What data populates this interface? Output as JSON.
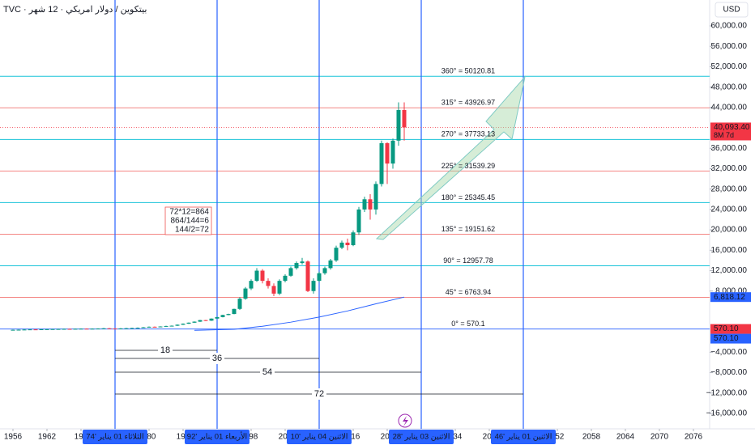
{
  "header": "TVC · بيتكوين / دولار امريكي · 12 شهر",
  "currency": "USD",
  "chart_data": {
    "type": "candlestick",
    "x": [
      1956,
      1957,
      1958,
      1959,
      1960,
      1961,
      1962,
      1963,
      1964,
      1965,
      1966,
      1967,
      1968,
      1969,
      1970,
      1971,
      1972,
      1973,
      1974,
      1975,
      1976,
      1977,
      1978,
      1979,
      1980,
      1981,
      1982,
      1983,
      1984,
      1985,
      1986,
      1987,
      1988,
      1989,
      1990,
      1991,
      1992,
      1993,
      1994,
      1995,
      1996,
      1997,
      1998,
      1999,
      2000,
      2001,
      2002,
      2003,
      2004,
      2005,
      2006,
      2007,
      2008,
      2009,
      2010,
      2011,
      2012,
      2013,
      2014,
      2015,
      2016,
      2017,
      2018,
      2019,
      2020,
      2021,
      2022,
      2023,
      2024,
      2025
    ],
    "open": [
      390,
      400,
      420,
      450,
      480,
      460,
      500,
      520,
      540,
      560,
      580,
      560,
      600,
      620,
      600,
      620,
      650,
      700,
      650,
      600,
      680,
      720,
      760,
      800,
      900,
      1000,
      950,
      1050,
      1150,
      1200,
      1400,
      1600,
      1800,
      2000,
      2300,
      2200,
      2600,
      2900,
      3300,
      3500,
      4500,
      6500,
      8500,
      10000,
      12000,
      10000,
      9000,
      7500,
      10000,
      11000,
      12500,
      13500,
      13800,
      8000,
      10000,
      11500,
      12500,
      14000,
      16500,
      17500,
      17000,
      19500,
      24000,
      26000,
      24000,
      29000,
      37000,
      33000,
      37500,
      43500
    ],
    "high": [
      450,
      470,
      500,
      530,
      530,
      550,
      570,
      590,
      610,
      630,
      630,
      650,
      670,
      670,
      670,
      700,
      750,
      750,
      700,
      730,
      770,
      810,
      850,
      950,
      1050,
      1050,
      1100,
      1200,
      1250,
      1450,
      1650,
      1850,
      2050,
      2350,
      2350,
      2650,
      2950,
      3350,
      3550,
      4550,
      6800,
      8800,
      10300,
      12500,
      12300,
      10500,
      9500,
      10300,
      11300,
      12800,
      13800,
      14500,
      14000,
      10500,
      11800,
      12800,
      14300,
      16900,
      17900,
      18300,
      19900,
      24500,
      26500,
      27000,
      29500,
      37500,
      37200,
      37900,
      45000,
      45000
    ],
    "low": [
      340,
      350,
      370,
      400,
      410,
      410,
      450,
      470,
      490,
      510,
      510,
      510,
      550,
      550,
      550,
      570,
      600,
      600,
      550,
      550,
      630,
      670,
      710,
      750,
      850,
      900,
      900,
      1000,
      1100,
      1150,
      1350,
      1550,
      1750,
      1950,
      2100,
      2150,
      2550,
      2850,
      3250,
      3450,
      4300,
      6300,
      8200,
      9800,
      9500,
      8500,
      7000,
      7200,
      9700,
      10800,
      12200,
      13200,
      7800,
      7500,
      9700,
      11200,
      12200,
      13700,
      16200,
      16000,
      16800,
      19000,
      23500,
      22000,
      23000,
      28500,
      29000,
      32000,
      36500,
      37500
    ],
    "close": [
      400,
      420,
      450,
      480,
      460,
      500,
      520,
      540,
      560,
      580,
      560,
      600,
      620,
      600,
      620,
      650,
      700,
      650,
      600,
      680,
      720,
      760,
      800,
      900,
      1000,
      950,
      1050,
      1150,
      1200,
      1400,
      1600,
      1800,
      2000,
      2300,
      2200,
      2600,
      2900,
      3300,
      3500,
      4500,
      6500,
      8500,
      10000,
      12000,
      10000,
      9000,
      7500,
      10000,
      11000,
      12500,
      13500,
      13800,
      8000,
      10000,
      11500,
      12500,
      14000,
      16500,
      17500,
      17000,
      19500,
      24000,
      26000,
      24000,
      29000,
      37000,
      33000,
      37500,
      43500,
      40093.4
    ],
    "up_color": "#089981",
    "down_color": "#f23645",
    "ma": {
      "x": [
        1988,
        1995,
        2000,
        2005,
        2010,
        2015,
        2020,
        2025
      ],
      "values": [
        300,
        500,
        1100,
        1900,
        2900,
        4100,
        5500,
        6818.12
      ],
      "color": "#2962ff"
    },
    "xlim": [
      1956,
      2076
    ],
    "ylim": [
      -16000,
      60000
    ],
    "xticks": [
      1956,
      1962,
      {
        "value": 1968,
        "label": "196"
      },
      {
        "value": 1980,
        "label": "980"
      },
      {
        "value": 1986,
        "label": "198"
      },
      {
        "value": 1998,
        "label": "998"
      },
      {
        "value": 2004,
        "label": "200"
      },
      {
        "value": 2016,
        "label": "016"
      },
      {
        "value": 2022,
        "label": "202"
      },
      {
        "value": 2034,
        "label": "034"
      },
      {
        "value": 2040,
        "label": "204"
      },
      {
        "value": 2052,
        "label": "052"
      },
      2058,
      2064,
      2070,
      2076
    ],
    "yticks": [
      {
        "value": 60000,
        "label": "60,000.00"
      },
      {
        "value": 56000,
        "label": "56,000.00"
      },
      {
        "value": 52000,
        "label": "52,000.00"
      },
      {
        "value": 48000,
        "label": "48,000.00"
      },
      {
        "value": 44000,
        "label": "44,000.00"
      },
      {
        "value": 36000,
        "label": "36,000.00"
      },
      {
        "value": 32000,
        "label": "32,000.00"
      },
      {
        "value": 28000,
        "label": "28,000.00"
      },
      {
        "value": 24000,
        "label": "24,000.00"
      },
      {
        "value": 20000,
        "label": "20,000.00"
      },
      {
        "value": 16000,
        "label": "16,000.00"
      },
      {
        "value": 12000,
        "label": "12,000.00"
      },
      {
        "value": 8000,
        "label": "8,000.00"
      },
      {
        "value": -4000,
        "label": "−4,000.00"
      },
      {
        "value": -8000,
        "label": "−8,000.00"
      },
      {
        "value": -12000,
        "label": "−12,000.00"
      },
      {
        "value": -16000,
        "label": "−16,000.00"
      }
    ],
    "levels": [
      {
        "value": 50120.81,
        "label": "360° = 50120.81",
        "color": "#00bcd4"
      },
      {
        "value": 43926.97,
        "label": "315° = 43926.97",
        "color": "#ef5350"
      },
      {
        "value": 37733.13,
        "label": "270° = 37733.13",
        "color": "#00bcd4"
      },
      {
        "value": 31539.29,
        "label": "225° = 31539.29",
        "color": "#ef5350"
      },
      {
        "value": 25345.45,
        "label": "180° = 25345.45",
        "color": "#00bcd4"
      },
      {
        "value": 19151.62,
        "label": "135° = 19151.62",
        "color": "#ef5350"
      },
      {
        "value": 12957.78,
        "label": "90° = 12957.78",
        "color": "#00bcd4"
      },
      {
        "value": 6763.94,
        "label": "45° = 6763.94",
        "color": "#ef5350"
      },
      {
        "value": 570.1,
        "label": "0° = 570.1",
        "color": "#2962ff"
      }
    ],
    "verticals": [
      {
        "x": 1974,
        "label": "الثلاثاء 01 يناير '74"
      },
      {
        "x": 1992,
        "label": "الأربعاء 01 يناير '92"
      },
      {
        "x": 2010,
        "label": "الاثنين 04 يناير '10"
      },
      {
        "x": 2028,
        "label": "الاثنين 03 يناير '28"
      },
      {
        "x": 2046,
        "label": "الاثنين 01 يناير '46"
      }
    ],
    "measures": [
      {
        "from": 1974,
        "to": 1992,
        "label": "18"
      },
      {
        "from": 1974,
        "to": 2010,
        "label": "36"
      },
      {
        "from": 1974,
        "to": 2028,
        "label": "54"
      },
      {
        "from": 1974,
        "to": 2046,
        "label": "72"
      }
    ],
    "note": [
      "72*12=864",
      "864/144=6",
      "144/2=72"
    ],
    "badges": [
      {
        "value": 40093.4,
        "label": "40,093.40",
        "sub": "8M 7d",
        "color": "#f23645"
      },
      {
        "value": 6818.12,
        "label": "6,818.12",
        "color": "#2962ff"
      },
      {
        "value": 570.1,
        "label": "570.10",
        "color": "#f23645"
      },
      {
        "value": 570.1,
        "label": "570.10",
        "color": "#2962ff"
      }
    ]
  }
}
